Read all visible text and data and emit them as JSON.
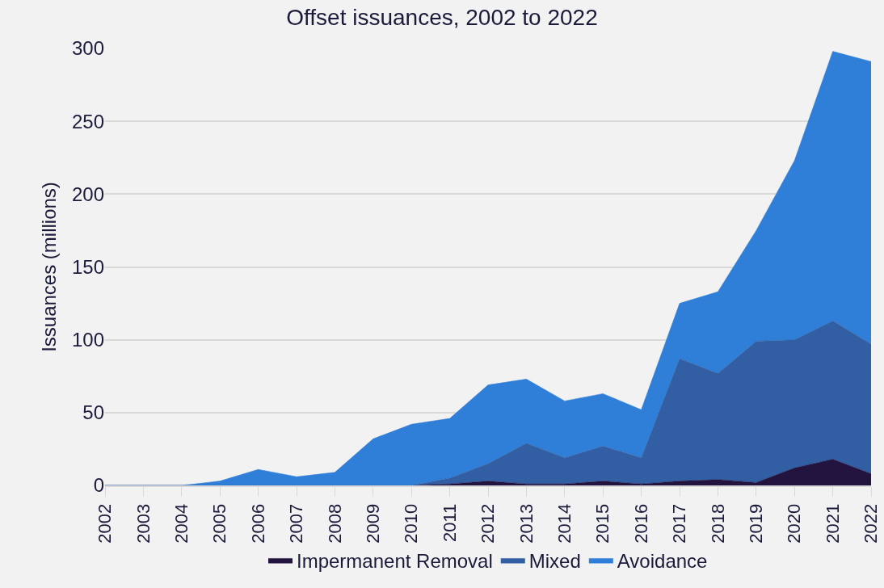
{
  "chart_data": {
    "type": "area",
    "title": "Offset issuances, 2002 to 2022",
    "ylabel": "Issuances (millions)",
    "categories": [
      "2002",
      "2003",
      "2004",
      "2005",
      "2006",
      "2007",
      "2008",
      "2009",
      "2010",
      "2011",
      "2012",
      "2013",
      "2014",
      "2015",
      "2016",
      "2017",
      "2018",
      "2019",
      "2020",
      "2021",
      "2022"
    ],
    "stacked": true,
    "series": [
      {
        "name": "Impermanent Removal",
        "color": "#22133f",
        "values": [
          0,
          0,
          0,
          0,
          0,
          0,
          0,
          0,
          0,
          1,
          3,
          1,
          1,
          3,
          1,
          3,
          4,
          2,
          12,
          18,
          8
        ]
      },
      {
        "name": "Mixed",
        "color": "#325ea3",
        "values": [
          0,
          0,
          0,
          0,
          0,
          0,
          0,
          0,
          0,
          4,
          12,
          28,
          18,
          24,
          18,
          84,
          73,
          97,
          88,
          95,
          89
        ]
      },
      {
        "name": "Avoidance",
        "color": "#2f7ed8",
        "values": [
          0,
          0,
          0,
          3,
          11,
          6,
          9,
          32,
          42,
          41,
          54,
          44,
          39,
          36,
          33,
          38,
          56,
          76,
          123,
          185,
          194
        ]
      }
    ],
    "ylim": [
      0,
      300
    ],
    "yticks": [
      0,
      50,
      100,
      150,
      200,
      250,
      300
    ],
    "grid": "y",
    "legend": "bottom"
  }
}
